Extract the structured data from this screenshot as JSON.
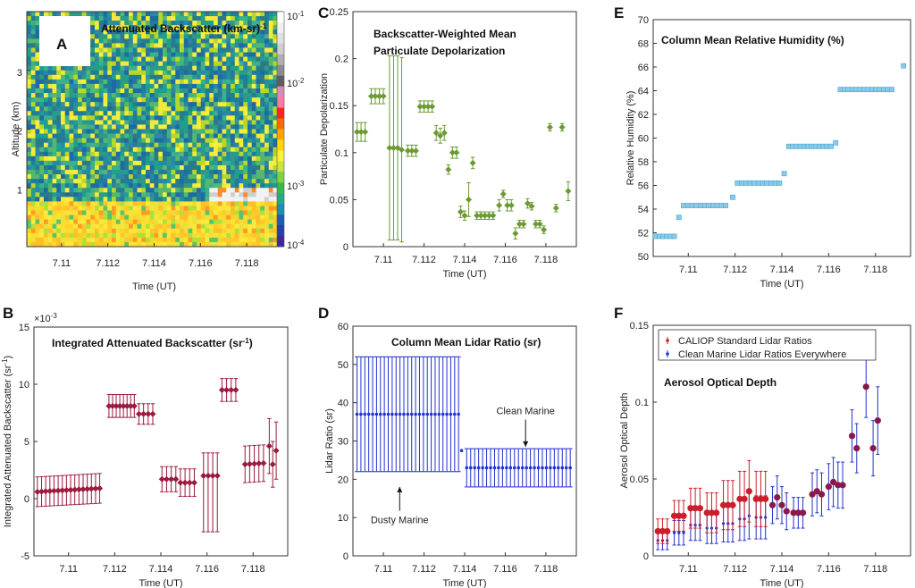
{
  "chart_data": [
    {
      "panel": "A",
      "type": "heatmap",
      "title": "Attenuated Backscatter (km-sr)",
      "title_sup": "-1",
      "xlabel": "Time (UT)",
      "ylabel": "Altitude (km)",
      "xlim": [
        7.1085,
        7.1195
      ],
      "ylim": [
        0,
        4
      ],
      "xticks": [
        "7.11",
        "7.112",
        "7.114",
        "7.116",
        "7.118"
      ],
      "xtick_values": [
        7.11,
        7.112,
        7.114,
        7.116,
        7.118
      ],
      "yticks": [
        "1",
        "2",
        "3"
      ],
      "ytick_values": [
        1,
        2,
        3
      ],
      "colorbar_labels": [
        "10",
        "10",
        "10",
        "10"
      ],
      "colorbar_exponents": [
        "-1",
        "-2",
        "-3",
        "-4"
      ],
      "layer_top_km": 0.85
    },
    {
      "panel": "B",
      "type": "scatter",
      "title": "Integrated Attenuated Backscatter (sr",
      "title_sup": "-1",
      "title_end": ")",
      "xlabel": "Time (UT)",
      "ylabel": "Integrated Attenuated Backscatter (sr",
      "ylabel_sup": "-1",
      "ylabel_end": ")",
      "scale_label": "×10",
      "scale_exp": "-3",
      "xlim": [
        7.1085,
        7.1195
      ],
      "ylim": [
        -5,
        15
      ],
      "xticks": [
        "7.11",
        "7.112",
        "7.114",
        "7.116",
        "7.118"
      ],
      "xtick_values": [
        7.11,
        7.112,
        7.114,
        7.116,
        7.118
      ],
      "yticks": [
        "-5",
        "0",
        "5",
        "10",
        "15"
      ],
      "ytick_values": [
        -5,
        0,
        5,
        10,
        15
      ],
      "color": "#9b1b3c",
      "groups": [
        {
          "x0": 7.10865,
          "x1": 7.11135,
          "n": 16,
          "y": [
            0.6,
            0.9
          ],
          "err": 1.3
        },
        {
          "x0": 7.11175,
          "x1": 7.11285,
          "n": 8,
          "y": [
            8.1,
            8.1
          ],
          "err": 1.0
        },
        {
          "x0": 7.11305,
          "x1": 7.11365,
          "n": 4,
          "y": [
            7.4,
            7.4
          ],
          "err": 0.9
        },
        {
          "x0": 7.11405,
          "x1": 7.11465,
          "n": 4,
          "y": [
            1.7,
            1.7
          ],
          "err": 1.1
        },
        {
          "x0": 7.11485,
          "x1": 7.11545,
          "n": 4,
          "y": [
            1.4,
            1.4
          ],
          "err": 1.2
        },
        {
          "x0": 7.11585,
          "x1": 7.11645,
          "n": 4,
          "y": [
            2.0,
            2.0
          ],
          "err": [
            4.9,
            2.0
          ]
        },
        {
          "x0": 7.11665,
          "x1": 7.11725,
          "n": 4,
          "y": [
            9.5,
            9.5
          ],
          "err": 1.0
        },
        {
          "x0": 7.11765,
          "x1": 7.11845,
          "n": 5,
          "y": [
            3.0,
            3.1
          ],
          "err": 1.6
        },
        {
          "x0": 7.1187,
          "x1": 7.1187,
          "n": 1,
          "y": [
            4.6,
            4.6
          ],
          "err": 2.4
        },
        {
          "x0": 7.11885,
          "x1": 7.11885,
          "n": 1,
          "y": [
            3.0,
            3.0
          ],
          "err": 2.0
        },
        {
          "x0": 7.119,
          "x1": 7.119,
          "n": 1,
          "y": [
            4.2,
            4.2
          ],
          "err": 2.5
        }
      ]
    },
    {
      "panel": "C",
      "type": "scatter",
      "title_lines": [
        "Backscatter-Weighted Mean",
        "Particulate Depolarization"
      ],
      "xlabel": "Time (UT)",
      "ylabel": "Particulate Depolarization",
      "xlim": [
        7.1085,
        7.1195
      ],
      "ylim": [
        0,
        0.25
      ],
      "xticks": [
        "7.11",
        "7.112",
        "7.114",
        "7.116",
        "7.118"
      ],
      "xtick_values": [
        7.11,
        7.112,
        7.114,
        7.116,
        7.118
      ],
      "yticks": [
        "0",
        "0.05",
        "0.1",
        "0.15",
        "0.2",
        "0.25"
      ],
      "ytick_values": [
        0,
        0.05,
        0.1,
        0.15,
        0.2,
        0.25
      ],
      "color": "#6c9a32",
      "points": [
        [
          7.1087,
          0.122,
          0.01
        ],
        [
          7.1089,
          0.122,
          0.01
        ],
        [
          7.1091,
          0.122,
          0.01
        ],
        [
          7.1094,
          0.16,
          0.008
        ],
        [
          7.1096,
          0.16,
          0.008
        ],
        [
          7.1098,
          0.16,
          0.008
        ],
        [
          7.11,
          0.16,
          0.008
        ],
        [
          7.1103,
          0.105,
          0.098
        ],
        [
          7.1105,
          0.105,
          0.098
        ],
        [
          7.1107,
          0.105,
          0.098
        ],
        [
          7.1109,
          0.103,
          0.098
        ],
        [
          7.1112,
          0.102,
          0.006
        ],
        [
          7.1114,
          0.102,
          0.006
        ],
        [
          7.1116,
          0.102,
          0.006
        ],
        [
          7.1118,
          0.149,
          0.006
        ],
        [
          7.112,
          0.149,
          0.006
        ],
        [
          7.1122,
          0.149,
          0.006
        ],
        [
          7.1124,
          0.149,
          0.006
        ],
        [
          7.1126,
          0.121,
          0.008
        ],
        [
          7.1128,
          0.118,
          0.008
        ],
        [
          7.113,
          0.121,
          0.008
        ],
        [
          7.1132,
          0.082,
          0.005
        ],
        [
          7.1134,
          0.1,
          0.006
        ],
        [
          7.1136,
          0.1,
          0.006
        ],
        [
          7.1138,
          0.037,
          0.006
        ],
        [
          7.114,
          0.033,
          0.005
        ],
        [
          7.1142,
          0.05,
          0.018
        ],
        [
          7.1144,
          0.089,
          0.006
        ],
        [
          7.1146,
          0.033,
          0.004
        ],
        [
          7.1148,
          0.033,
          0.004
        ],
        [
          7.115,
          0.033,
          0.004
        ],
        [
          7.1152,
          0.033,
          0.004
        ],
        [
          7.1154,
          0.033,
          0.004
        ],
        [
          7.1157,
          0.044,
          0.006
        ],
        [
          7.1159,
          0.056,
          0.004
        ],
        [
          7.1161,
          0.044,
          0.006
        ],
        [
          7.1163,
          0.044,
          0.006
        ],
        [
          7.1165,
          0.014,
          0.006
        ],
        [
          7.1167,
          0.024,
          0.004
        ],
        [
          7.1169,
          0.024,
          0.004
        ],
        [
          7.1171,
          0.046,
          0.005
        ],
        [
          7.1173,
          0.043,
          0.004
        ],
        [
          7.1175,
          0.024,
          0.004
        ],
        [
          7.1177,
          0.024,
          0.004
        ],
        [
          7.1179,
          0.018,
          0.004
        ],
        [
          7.1182,
          0.127,
          0.004
        ],
        [
          7.1185,
          0.041,
          0.004
        ],
        [
          7.1188,
          0.127,
          0.004
        ],
        [
          7.1191,
          0.059,
          0.01
        ]
      ]
    },
    {
      "panel": "D",
      "type": "scatter",
      "title": "Column Mean Lidar Ratio (sr)",
      "xlabel": "Time (UT)",
      "ylabel": "Lidar Ratio (sr)",
      "xlim": [
        7.1085,
        7.1195
      ],
      "ylim": [
        0,
        60
      ],
      "xticks": [
        "7.11",
        "7.112",
        "7.114",
        "7.116",
        "7.118"
      ],
      "xtick_values": [
        7.11,
        7.112,
        7.114,
        7.116,
        7.118
      ],
      "yticks": [
        "0",
        "10",
        "20",
        "30",
        "40",
        "50",
        "60"
      ],
      "ytick_values": [
        0,
        10,
        20,
        30,
        40,
        50,
        60
      ],
      "color": "#2233cc",
      "groups": [
        {
          "name": "Dusty Marine",
          "x0": 7.1087,
          "x1": 7.1137,
          "n": 27,
          "y": 37,
          "lo": 22,
          "hi": 52
        },
        {
          "name": "Clean Marine",
          "x0": 7.1141,
          "x1": 7.1192,
          "n": 27,
          "y": 23,
          "lo": 18,
          "hi": 28
        },
        {
          "name": "",
          "x0": 7.11385,
          "x1": 7.11385,
          "n": 1,
          "y": 27.5,
          "lo": 27.5,
          "hi": 27.5
        }
      ],
      "annotations": [
        {
          "text": "Dusty Marine",
          "x": 7.1108,
          "y": 8.5,
          "arrow_to": 18
        },
        {
          "text": "Clean Marine",
          "x": 7.117,
          "y": 37,
          "arrow_to": 28.5
        }
      ]
    },
    {
      "panel": "E",
      "type": "scatter",
      "title": "Column Mean Relative Humidity (%)",
      "xlabel": "Time (UT)",
      "ylabel": "Relative Humidity (%)",
      "xlim": [
        7.1085,
        7.1195
      ],
      "ylim": [
        50,
        70
      ],
      "xticks": [
        "7.11",
        "7.112",
        "7.114",
        "7.116",
        "7.118"
      ],
      "xtick_values": [
        7.11,
        7.112,
        7.114,
        7.116,
        7.118
      ],
      "yticks": [
        "50",
        "52",
        "54",
        "56",
        "58",
        "60",
        "62",
        "64",
        "66",
        "68",
        "70"
      ],
      "ytick_values": [
        50,
        52,
        54,
        56,
        58,
        60,
        62,
        64,
        66,
        68,
        70
      ],
      "color": "#86ccea",
      "groups": [
        {
          "x0": 7.1086,
          "x1": 7.1094,
          "n": 6,
          "y": 51.7
        },
        {
          "x0": 7.1096,
          "x1": 7.1096,
          "n": 1,
          "y": 53.3
        },
        {
          "x0": 7.1098,
          "x1": 7.1116,
          "n": 11,
          "y": 54.3
        },
        {
          "x0": 7.1119,
          "x1": 7.1119,
          "n": 1,
          "y": 55.0
        },
        {
          "x0": 7.1121,
          "x1": 7.1139,
          "n": 11,
          "y": 56.2
        },
        {
          "x0": 7.1141,
          "x1": 7.1141,
          "n": 1,
          "y": 57.0
        },
        {
          "x0": 7.1143,
          "x1": 7.1161,
          "n": 12,
          "y": 59.3
        },
        {
          "x0": 7.1163,
          "x1": 7.1163,
          "n": 1,
          "y": 59.6
        },
        {
          "x0": 7.1165,
          "x1": 7.1187,
          "n": 14,
          "y": 64.1
        },
        {
          "x0": 7.1192,
          "x1": 7.1192,
          "n": 1,
          "y": 66.1
        }
      ]
    },
    {
      "panel": "F",
      "type": "scatter",
      "title": "Aerosol Optical Depth",
      "xlabel": "Time (UT)",
      "ylabel": "Aerosol Optical Depth",
      "xlim": [
        7.1085,
        7.1195
      ],
      "ylim": [
        0,
        0.15
      ],
      "xticks": [
        "7.11",
        "7.112",
        "7.114",
        "7.116",
        "7.118"
      ],
      "xtick_values": [
        7.11,
        7.112,
        7.114,
        7.116,
        7.118
      ],
      "yticks": [
        "0",
        "0.05",
        "0.1",
        "0.15"
      ],
      "ytick_values": [
        0,
        0.05,
        0.1,
        0.15
      ],
      "legend": [
        {
          "name": "CALIOP Standard Lidar Ratios",
          "color": "#cc1e2a"
        },
        {
          "name": "Clean Marine Lidar Ratios Everywhere",
          "color": "#2233cc"
        }
      ],
      "series": [
        {
          "name": "CALIOP Standard Lidar Ratios",
          "color": "#cc1e2a",
          "points": [
            [
              7.1087,
              0.016,
              0.008
            ],
            [
              7.1089,
              0.016,
              0.008
            ],
            [
              7.1091,
              0.016,
              0.008
            ],
            [
              7.1094,
              0.026,
              0.01
            ],
            [
              7.1096,
              0.026,
              0.01
            ],
            [
              7.1098,
              0.026,
              0.01
            ],
            [
              7.1101,
              0.031,
              0.013
            ],
            [
              7.1103,
              0.031,
              0.013
            ],
            [
              7.1105,
              0.031,
              0.013
            ],
            [
              7.1108,
              0.028,
              0.013
            ],
            [
              7.111,
              0.028,
              0.013
            ],
            [
              7.1112,
              0.028,
              0.013
            ],
            [
              7.1115,
              0.033,
              0.016
            ],
            [
              7.1117,
              0.033,
              0.016
            ],
            [
              7.1119,
              0.033,
              0.016
            ],
            [
              7.1122,
              0.037,
              0.018
            ],
            [
              7.1124,
              0.037,
              0.018
            ],
            [
              7.1126,
              0.042,
              0.02
            ],
            [
              7.1129,
              0.037,
              0.018
            ],
            [
              7.1131,
              0.037,
              0.018
            ],
            [
              7.1133,
              0.037,
              0.018
            ],
            [
              7.1136,
              0.033,
              0.012
            ],
            [
              7.1138,
              0.038,
              0.014
            ],
            [
              7.114,
              0.033,
              0.012
            ],
            [
              7.1142,
              0.029,
              0.012
            ],
            [
              7.1145,
              0.028,
              0.01
            ],
            [
              7.1147,
              0.028,
              0.01
            ],
            [
              7.1149,
              0.028,
              0.01
            ],
            [
              7.1153,
              0.04,
              0.014
            ],
            [
              7.1155,
              0.042,
              0.014
            ],
            [
              7.1157,
              0.04,
              0.014
            ],
            [
              7.116,
              0.045,
              0.015
            ],
            [
              7.1162,
              0.048,
              0.016
            ],
            [
              7.1164,
              0.046,
              0.015
            ],
            [
              7.1166,
              0.046,
              0.015
            ],
            [
              7.117,
              0.078,
              0.017
            ],
            [
              7.1172,
              0.07,
              0.016
            ],
            [
              7.1176,
              0.11,
              0.02
            ],
            [
              7.1179,
              0.07,
              0.018
            ],
            [
              7.1181,
              0.088,
              0.022
            ]
          ]
        },
        {
          "name": "Clean Marine Lidar Ratios Everywhere",
          "color": "#2233cc",
          "points": [
            [
              7.1087,
              0.01,
              0.006
            ],
            [
              7.1089,
              0.01,
              0.006
            ],
            [
              7.1091,
              0.01,
              0.006
            ],
            [
              7.1094,
              0.015,
              0.008
            ],
            [
              7.1096,
              0.015,
              0.008
            ],
            [
              7.1098,
              0.015,
              0.008
            ],
            [
              7.1101,
              0.02,
              0.01
            ],
            [
              7.1103,
              0.02,
              0.01
            ],
            [
              7.1105,
              0.02,
              0.01
            ],
            [
              7.1108,
              0.018,
              0.01
            ],
            [
              7.111,
              0.018,
              0.01
            ],
            [
              7.1112,
              0.018,
              0.01
            ],
            [
              7.1115,
              0.021,
              0.012
            ],
            [
              7.1117,
              0.021,
              0.012
            ],
            [
              7.1119,
              0.021,
              0.012
            ],
            [
              7.1122,
              0.024,
              0.014
            ],
            [
              7.1124,
              0.024,
              0.014
            ],
            [
              7.1126,
              0.026,
              0.015
            ],
            [
              7.1129,
              0.025,
              0.014
            ],
            [
              7.1131,
              0.025,
              0.014
            ],
            [
              7.1133,
              0.025,
              0.014
            ]
          ]
        }
      ]
    }
  ],
  "panel_letters": [
    "A",
    "B",
    "C",
    "D",
    "E",
    "F"
  ]
}
